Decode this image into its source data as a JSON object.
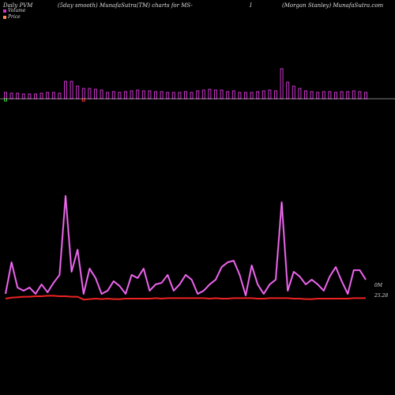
{
  "header": {
    "left": "Daily PVM",
    "middle": "(5day smooth) MunafaSutra(TM) charts for MS-",
    "symbol": "I",
    "right": "(Morgan Stanley) MunafaSutra.com"
  },
  "legend": {
    "volume": "Volume",
    "price": "Price"
  },
  "colors": {
    "background": "#000000",
    "volume_bar": "#cc33cc",
    "volume_line": "#cc44cc",
    "price_line": "#ee2222",
    "baseline": "#ffffff",
    "neg_green": "#33cc33",
    "neg_red": "#ff3333"
  },
  "chart_data": [
    {
      "type": "bar",
      "title": "",
      "series": [
        {
          "name": "Volume",
          "values": [
            8,
            7,
            7,
            6,
            6,
            6,
            7,
            8,
            8,
            7,
            22,
            22,
            16,
            13,
            13,
            12,
            11,
            8,
            9,
            8,
            9,
            10,
            11,
            10,
            10,
            9,
            9,
            8,
            8,
            8,
            9,
            8,
            10,
            11,
            12,
            11,
            11,
            9,
            10,
            8,
            8,
            8,
            9,
            10,
            11,
            10,
            38,
            21,
            16,
            13,
            10,
            9,
            8,
            9,
            9,
            8,
            9,
            9,
            10,
            9,
            8
          ]
        }
      ],
      "negative_marks": [
        {
          "index": 0,
          "color": "green"
        },
        {
          "index": 13,
          "color": "red"
        }
      ]
    },
    {
      "type": "line",
      "title": "",
      "series": [
        {
          "name": "Volume",
          "values": [
            2,
            22,
            6,
            4,
            6,
            2,
            8,
            3,
            9,
            14,
            64,
            16,
            30,
            2,
            18,
            12,
            2,
            4,
            10,
            7,
            2,
            14,
            12,
            18,
            4,
            8,
            9,
            14,
            4,
            8,
            14,
            11,
            2,
            4,
            8,
            11,
            19,
            22,
            23,
            14,
            1,
            20,
            8,
            2,
            8,
            11,
            60,
            4,
            16,
            13,
            8,
            11,
            8,
            4,
            13,
            19,
            10,
            2,
            17,
            17,
            11
          ]
        },
        {
          "name": "Price",
          "values": [
            0,
            2,
            3,
            4,
            4,
            5,
            5,
            6,
            6,
            5,
            5,
            4,
            4,
            -2,
            -1,
            0,
            -1,
            0,
            -1,
            -1,
            0,
            0,
            0,
            0,
            0,
            1,
            0,
            1,
            1,
            1,
            1,
            1,
            1,
            1,
            0,
            1,
            0,
            0,
            1,
            1,
            1,
            1,
            0,
            0,
            1,
            1,
            1,
            1,
            0,
            0,
            -1,
            -1,
            0,
            0,
            0,
            0,
            0,
            0,
            1,
            1,
            1
          ]
        }
      ],
      "annotations": [
        {
          "label": "0M"
        },
        {
          "label": "25.28"
        }
      ]
    }
  ]
}
